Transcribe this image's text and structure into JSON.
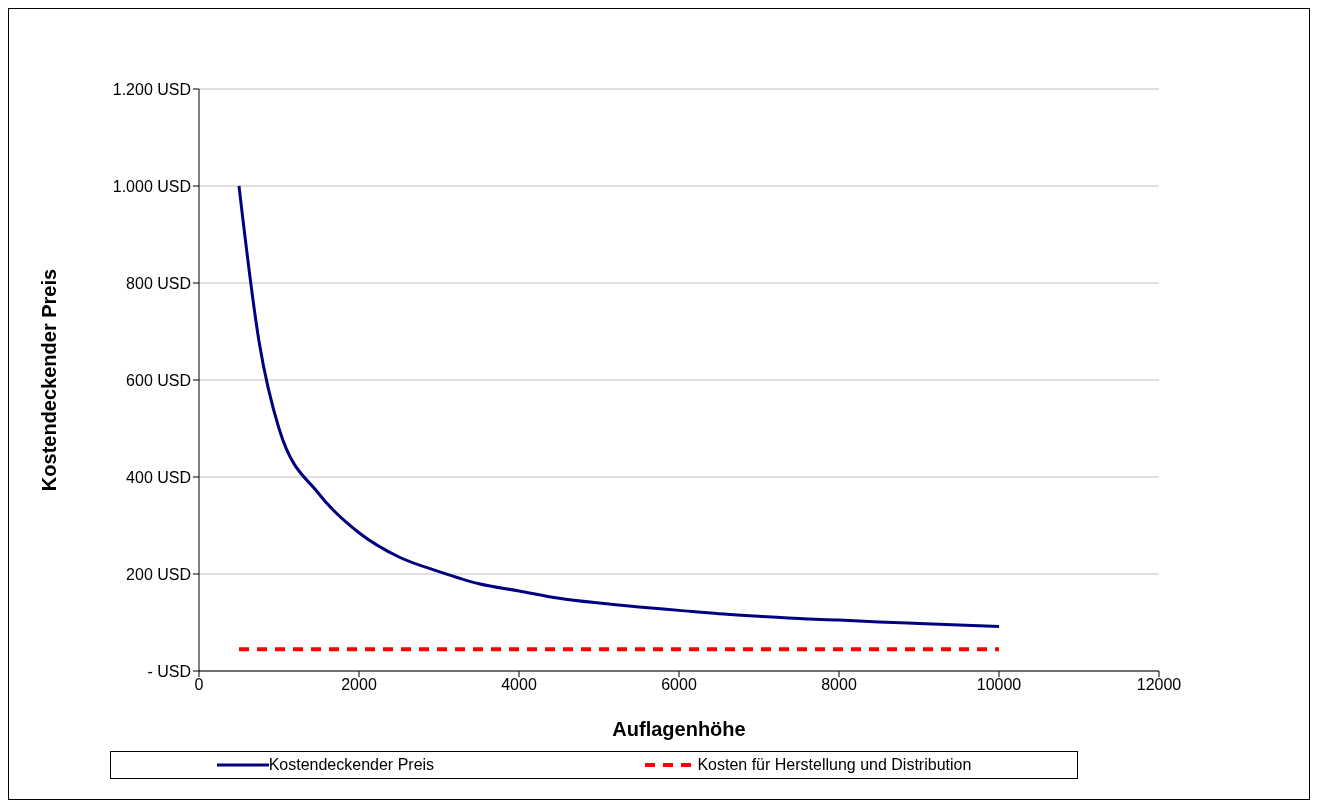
{
  "chart_data": {
    "type": "line",
    "xlabel": "Auflagenhöhe",
    "ylabel": "Kostendeckender Preis",
    "x": [
      500,
      750,
      1000,
      1500,
      2000,
      2500,
      3000,
      3500,
      4000,
      4500,
      5000,
      5500,
      6000,
      6500,
      7000,
      7500,
      8000,
      8500,
      9000,
      9500,
      10000
    ],
    "series": [
      {
        "name": "Kostendeckender Preis",
        "color": "#000080",
        "line_style": "solid",
        "values": [
          1000,
          680,
          500,
          365,
          285,
          235,
          205,
          180,
          165,
          150,
          140,
          132,
          125,
          118,
          113,
          108,
          105,
          101,
          98,
          95,
          92
        ]
      },
      {
        "name": "Kosten für Herstellung und Distribution",
        "color": "#ff0000",
        "line_style": "dashed",
        "values": [
          45,
          45,
          45,
          45,
          45,
          45,
          45,
          45,
          45,
          45,
          45,
          45,
          45,
          45,
          45,
          45,
          45,
          45,
          45,
          45,
          45
        ]
      }
    ],
    "xlim": [
      0,
      12000
    ],
    "xticks": [
      0,
      2000,
      4000,
      6000,
      8000,
      10000,
      12000
    ],
    "ylim": [
      0,
      1200
    ],
    "yticks": [
      {
        "value": 0,
        "label": "- USD"
      },
      {
        "value": 200,
        "label": "200 USD"
      },
      {
        "value": 400,
        "label": "400 USD"
      },
      {
        "value": 600,
        "label": "600 USD"
      },
      {
        "value": 800,
        "label": "800 USD"
      },
      {
        "value": 1000,
        "label": "1.000 USD"
      },
      {
        "value": 1200,
        "label": "1.200 USD"
      }
    ],
    "grid": "y",
    "legend": "bottom",
    "marker": "none"
  }
}
